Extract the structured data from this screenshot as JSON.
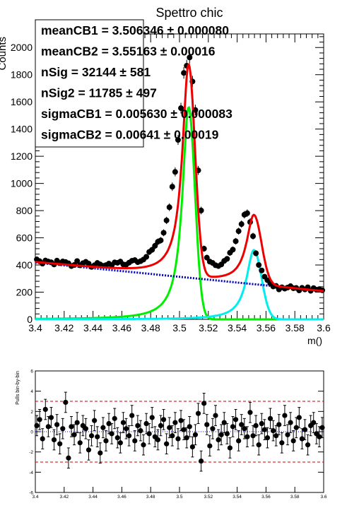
{
  "chart_data": [
    {
      "type": "scatter",
      "title": "Spettro chic",
      "xlabel": "m()",
      "ylabel": "Counts",
      "xlim": [
        3.4,
        3.6
      ],
      "ylim": [
        0,
        2100
      ],
      "x_ticks": [
        "3.4",
        "3.42",
        "3.44",
        "3.46",
        "3.48",
        "3.5",
        "3.52",
        "3.54",
        "3.56",
        "3.58",
        "3.6"
      ],
      "y_ticks": [
        "0",
        "200",
        "400",
        "600",
        "800",
        "1000",
        "1200",
        "1400",
        "1600",
        "1800",
        "2000"
      ],
      "fit_params": [
        {
          "name": "meanCB1",
          "value": "3.506346",
          "error": "0.000080"
        },
        {
          "name": "meanCB2",
          "value": "3.55163",
          "error": "0.00016"
        },
        {
          "name": "nSig",
          "value": "32144",
          "error": "581"
        },
        {
          "name": "nSig2",
          "value": "11785",
          "error": "497"
        },
        {
          "name": "sigmaCB1",
          "value": "0.005630",
          "error": "0.000083"
        },
        {
          "name": "sigmaCB2",
          "value": "0.00641",
          "error": "0.00019"
        }
      ],
      "model": {
        "background": {
          "color": "#0000cc",
          "y_at_3_40": 418,
          "y_at_3_60": 208
        },
        "signal1": {
          "color": "#00ee00",
          "mean": 3.5063,
          "peak": 1560,
          "width": 0.0052
        },
        "signal2": {
          "color": "#00eeee",
          "mean": 3.5516,
          "peak": 510,
          "width": 0.0062
        },
        "total": {
          "color": "#ee0000"
        }
      },
      "series": [
        {
          "x": [
            3.401,
            3.403,
            3.405,
            3.407,
            3.409,
            3.411,
            3.413,
            3.415,
            3.417,
            3.419,
            3.421,
            3.423,
            3.425,
            3.427,
            3.429,
            3.431,
            3.433,
            3.435,
            3.437,
            3.439,
            3.441,
            3.443,
            3.445,
            3.447,
            3.449,
            3.451,
            3.453,
            3.455,
            3.457,
            3.459,
            3.461,
            3.463,
            3.465,
            3.467,
            3.469,
            3.471,
            3.473,
            3.475,
            3.477,
            3.479,
            3.481,
            3.483,
            3.485,
            3.487,
            3.489,
            3.491,
            3.493,
            3.495,
            3.497,
            3.499,
            3.501,
            3.503,
            3.505,
            3.507,
            3.509,
            3.511,
            3.513,
            3.515,
            3.517,
            3.519,
            3.521,
            3.523,
            3.525,
            3.527,
            3.529,
            3.531,
            3.533,
            3.535,
            3.537,
            3.539,
            3.541,
            3.543,
            3.545,
            3.547,
            3.549,
            3.551,
            3.553,
            3.555,
            3.557,
            3.559,
            3.561,
            3.563,
            3.565,
            3.567,
            3.569,
            3.571,
            3.573,
            3.575,
            3.577,
            3.579,
            3.581,
            3.583,
            3.585,
            3.587,
            3.589,
            3.591,
            3.593,
            3.595,
            3.597,
            3.599
          ],
          "y": [
            441,
            428,
            410,
            433,
            425,
            420,
            404,
            432,
            414,
            426,
            422,
            412,
            392,
            400,
            429,
            398,
            413,
            423,
            410,
            386,
            398,
            415,
            404,
            394,
            399,
            410,
            398,
            419,
            416,
            425,
            404,
            402,
            417,
            431,
            436,
            421,
            428,
            440,
            460,
            496,
            512,
            541,
            571,
            581,
            637,
            728,
            825,
            976,
            1085,
            1320,
            1554,
            1813,
            1866,
            1927,
            1750,
            1540,
            1096,
            801,
            520,
            454,
            425,
            415,
            398,
            392,
            404,
            430,
            445,
            490,
            513,
            575,
            649,
            701,
            770,
            781,
            716,
            612,
            486,
            400,
            360,
            314,
            288,
            264,
            242,
            246,
            220,
            236,
            226,
            234,
            244,
            229,
            231,
            213,
            232,
            220,
            236,
            210,
            230,
            218,
            222,
            214
          ]
        }
      ],
      "pull_panel": {
        "ylabel": "Pulls bin-by-bin",
        "ylim": [
          -6,
          6
        ],
        "y_ticks": [
          "-6",
          "-4",
          "-2",
          "0",
          "2",
          "4",
          "6"
        ],
        "x_ticks": [
          "3.4",
          "3.42",
          "3.44",
          "3.46",
          "3.48",
          "3.5",
          "3.52",
          "3.54",
          "3.56",
          "3.58",
          "3.6"
        ],
        "ref_lines": [
          3,
          -3
        ],
        "pulls": [
          0.6,
          1.2,
          -0.7,
          2.2,
          0.5,
          1.4,
          -0.8,
          0.7,
          -1.2,
          0.3,
          2.9,
          -2.6,
          0.5,
          -0.3,
          0.9,
          -1.1,
          0.6,
          0.3,
          -1.8,
          -0.4,
          1.1,
          -0.5,
          -2.1,
          0.4,
          -0.9,
          0.8,
          -0.2,
          1.3,
          -0.6,
          -1.1,
          0.9,
          0.3,
          -0.4,
          1.6,
          -0.9,
          0.6,
          0.1,
          -1.3,
          0.8,
          -0.2,
          1.4,
          -0.5,
          -0.8,
          0.6,
          1.2,
          -1.2,
          0.4,
          -0.4,
          0.9,
          -0.7,
          1.1,
          0.2,
          -0.6,
          0.5,
          -1.5,
          -0.3,
          1.8,
          -2.9,
          2.8,
          0.7,
          -1.4,
          0.3,
          1.6,
          -0.8,
          -0.3,
          0.9,
          -0.2,
          -1.6,
          0.5,
          1.2,
          -0.9,
          0.7,
          0.3,
          -0.5,
          1.9,
          -0.4,
          0.6,
          -1.3,
          0.8,
          0.2,
          -0.6,
          1.3,
          0.1,
          -0.4,
          0.7,
          -1.1,
          1.6,
          -0.3,
          0.9,
          -0.9,
          0.4,
          1.4,
          -0.7,
          0.2,
          -1.3,
          0.6,
          0.9,
          -0.2,
          -0.5,
          0.4
        ]
      }
    }
  ]
}
